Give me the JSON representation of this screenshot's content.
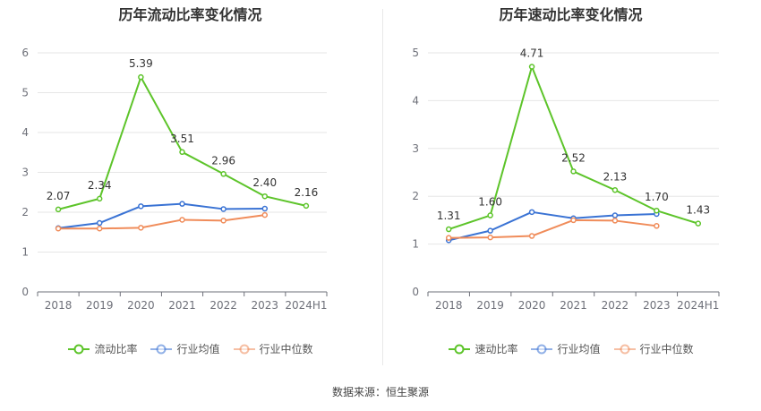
{
  "footer": "数据来源：恒生聚源",
  "chart_data": [
    {
      "type": "line",
      "title": "历年流动比率变化情况",
      "categories": [
        "2018",
        "2019",
        "2020",
        "2021",
        "2022",
        "2023",
        "2024H1"
      ],
      "ylim": [
        0,
        6
      ],
      "yticks": [
        0,
        1,
        2,
        3,
        4,
        5,
        6
      ],
      "grid": true,
      "legend_position": "bottom",
      "series": [
        {
          "name": "流动比率",
          "color": "#5dc42a",
          "values": [
            2.07,
            2.34,
            5.39,
            3.51,
            2.96,
            2.4,
            2.16
          ],
          "labels": [
            "2.07",
            "2.34",
            "5.39",
            "3.51",
            "2.96",
            "2.40",
            "2.16"
          ]
        },
        {
          "name": "行业均值",
          "color": "#3a73d4",
          "values": [
            1.6,
            1.73,
            2.15,
            2.21,
            2.08,
            2.09,
            null
          ]
        },
        {
          "name": "行业中位数",
          "color": "#f08c5a",
          "values": [
            1.59,
            1.59,
            1.61,
            1.81,
            1.79,
            1.93,
            null
          ]
        }
      ]
    },
    {
      "type": "line",
      "title": "历年速动比率变化情况",
      "categories": [
        "2018",
        "2019",
        "2020",
        "2021",
        "2022",
        "2023",
        "2024H1"
      ],
      "ylim": [
        0,
        5
      ],
      "yticks": [
        0,
        1,
        2,
        3,
        4,
        5
      ],
      "grid": true,
      "legend_position": "bottom",
      "series": [
        {
          "name": "速动比率",
          "color": "#5dc42a",
          "values": [
            1.31,
            1.6,
            4.71,
            2.52,
            2.13,
            1.7,
            1.43
          ],
          "labels": [
            "1.31",
            "1.60",
            "4.71",
            "2.52",
            "2.13",
            "1.70",
            "1.43"
          ]
        },
        {
          "name": "行业均值",
          "color": "#3a73d4",
          "values": [
            1.08,
            1.28,
            1.67,
            1.54,
            1.6,
            1.63,
            null
          ]
        },
        {
          "name": "行业中位数",
          "color": "#f08c5a",
          "values": [
            1.13,
            1.14,
            1.17,
            1.5,
            1.49,
            1.38,
            null
          ]
        }
      ]
    }
  ]
}
